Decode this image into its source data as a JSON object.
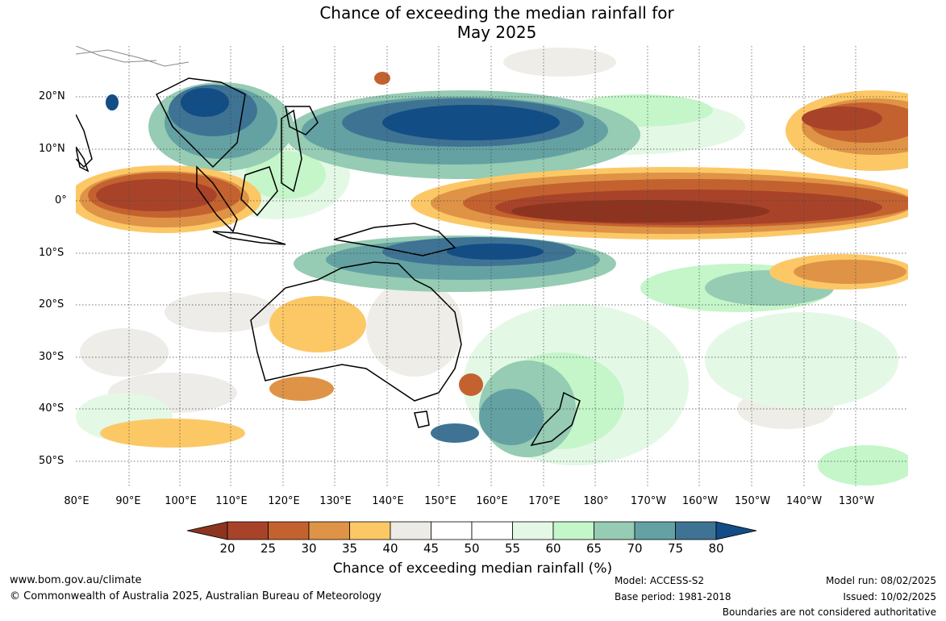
{
  "title": {
    "line1": "Chance of exceeding the median rainfall for",
    "line2": "May 2025"
  },
  "map": {
    "lat_labels": [
      "20°N",
      "10°N",
      "0°",
      "10°S",
      "20°S",
      "30°S",
      "40°S",
      "50°S"
    ],
    "lon_labels": [
      "80°E",
      "90°E",
      "100°E",
      "110°E",
      "120°E",
      "130°E",
      "140°E",
      "150°E",
      "160°E",
      "170°E",
      "180°",
      "170°W",
      "160°W",
      "150°W",
      "140°W",
      "130°W"
    ]
  },
  "legend": {
    "ticks": [
      "20",
      "25",
      "30",
      "35",
      "40",
      "45",
      "50",
      "55",
      "60",
      "65",
      "70",
      "75",
      "80"
    ],
    "title": "Chance of exceeding median rainfall (%)",
    "colors": [
      "#8c3420",
      "#a8432a",
      "#c4622f",
      "#df9346",
      "#fcc866",
      "#ecebe6",
      "#ffffff",
      "#ffffff",
      "#e4f8e6",
      "#c4f6c9",
      "#96cbb4",
      "#64a1a3",
      "#3e7394",
      "#124d86"
    ]
  },
  "footer": {
    "url": "www.bom.gov.au/climate",
    "copyright": "© Commonwealth of Australia 2025, Australian Bureau of Meteorology",
    "model": "Model: ACCESS-S2",
    "base_period": "Base period: 1981-2018",
    "model_run": "Model run: 08/02/2025",
    "issued": "Issued: 10/02/2025",
    "disclaimer": "Boundaries are not considered authoritative"
  }
}
